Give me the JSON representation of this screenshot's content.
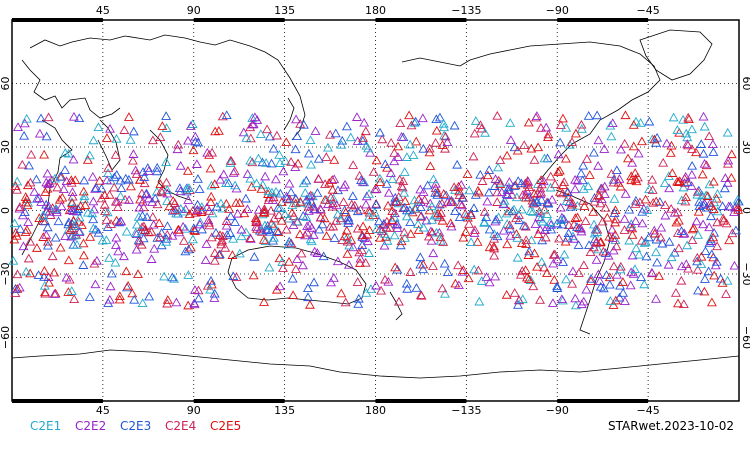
{
  "title": "STARwet.2023-10-02",
  "longitude_ticks": [
    "45",
    "90",
    "135",
    "180",
    "−135",
    "−90",
    "−45"
  ],
  "latitude_ticks": [
    "60",
    "30",
    "0",
    "−30",
    "−60"
  ],
  "series": [
    {
      "name": "C2E1",
      "color": "#22aacc"
    },
    {
      "name": "C2E2",
      "color": "#9922cc"
    },
    {
      "name": "C2E3",
      "color": "#2255dd"
    },
    {
      "name": "C2E4",
      "color": "#cc2255"
    },
    {
      "name": "C2E5",
      "color": "#dd1111"
    }
  ],
  "map": {
    "lon_range": [
      0,
      360
    ],
    "lat_range": [
      -90,
      90
    ],
    "grid": true,
    "marker": "triangle-outline",
    "obs_lat_band": [
      -45,
      45
    ]
  }
}
